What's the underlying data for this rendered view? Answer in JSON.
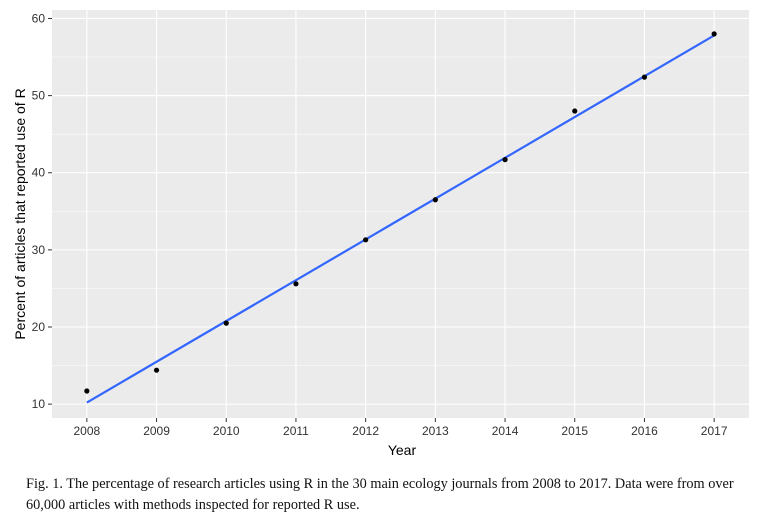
{
  "chart_data": {
    "type": "scatter",
    "title": "",
    "xlabel": "Year",
    "ylabel": "Percent of articles that reported use of R",
    "x": [
      2008,
      2009,
      2010,
      2011,
      2012,
      2013,
      2014,
      2015,
      2016,
      2017
    ],
    "y": [
      11.7,
      14.4,
      20.5,
      25.6,
      31.3,
      36.5,
      41.7,
      48.0,
      52.4,
      58.0
    ],
    "trend_line": {
      "type": "linear fit",
      "x": [
        2008,
        2017
      ],
      "y": [
        10.2,
        57.8
      ]
    },
    "xlim": [
      2007.5,
      2017.5
    ],
    "ylim": [
      8.2,
      61.1
    ],
    "x_ticks": [
      "2008",
      "2009",
      "2010",
      "2011",
      "2012",
      "2013",
      "2014",
      "2015",
      "2016",
      "2017"
    ],
    "y_ticks": [
      "10",
      "20",
      "30",
      "40",
      "50",
      "60"
    ],
    "grid": true,
    "legend": "none",
    "colors": {
      "panel_background": "#ebebeb",
      "grid": "#ffffff",
      "point": "#000000",
      "trend_line": "#3366ff"
    }
  },
  "caption": "Fig. 1. The percentage of research articles using R in the 30 main ecology journals from 2008 to 2017. Data were from over 60,000 articles with methods inspected for reported R use."
}
